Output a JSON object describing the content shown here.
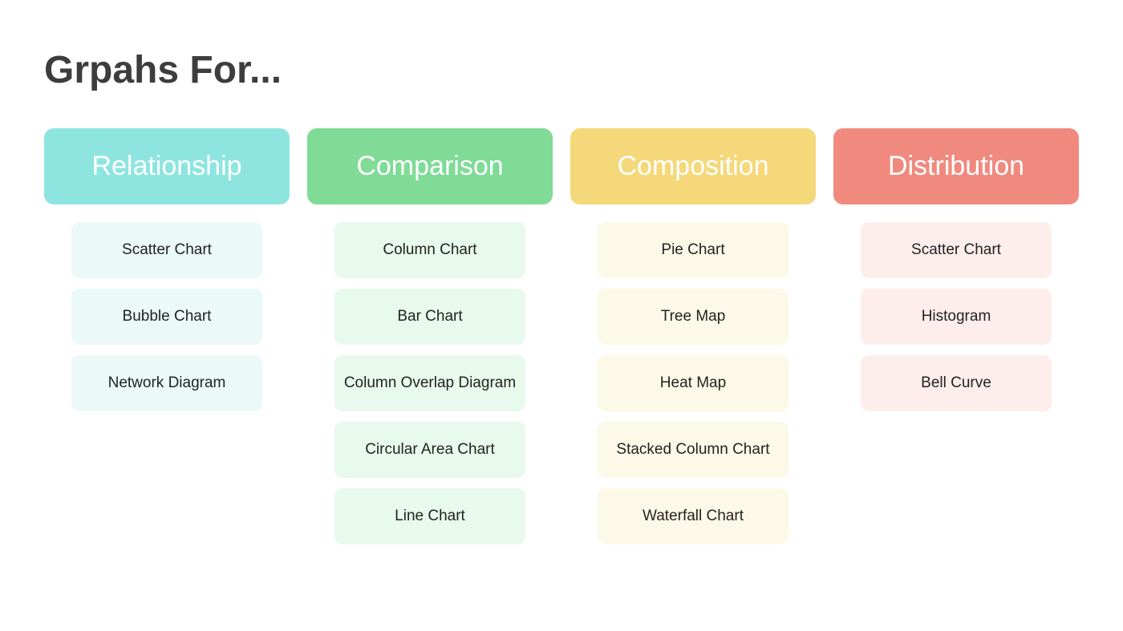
{
  "title": "Grpahs For...",
  "page": {
    "background_color": "#ffffff",
    "title_color": "#3d3d3d",
    "title_fontsize": 48,
    "title_fontweight": 700,
    "header_fontsize": 34,
    "header_fontweight": 500,
    "header_text_color": "#ffffff",
    "item_fontsize": 19,
    "item_text_color": "#222222",
    "column_gap": 22,
    "item_gap": 13,
    "header_border_radius": 12,
    "item_border_radius": 10
  },
  "categories": [
    {
      "label": "Relationship",
      "header_color": "#8ee5e0",
      "item_bg_color": "#ebf9f8",
      "items": [
        "Scatter Chart",
        "Bubble Chart",
        "Network Diagram"
      ]
    },
    {
      "label": "Comparison",
      "header_color": "#7fdb96",
      "item_bg_color": "#e8f9ed",
      "items": [
        "Column Chart",
        "Bar Chart",
        "Column Overlap Diagram",
        "Circular Area Chart",
        "Line Chart"
      ]
    },
    {
      "label": "Composition",
      "header_color": "#f4d87a",
      "item_bg_color": "#fdf9e8",
      "items": [
        "Pie Chart",
        "Tree Map",
        "Heat Map",
        "Stacked Column Chart",
        "Waterfall Chart"
      ]
    },
    {
      "label": "Distribution",
      "header_color": "#f08a7f",
      "item_bg_color": "#fdeeec",
      "items": [
        "Scatter Chart",
        "Histogram",
        "Bell Curve"
      ]
    }
  ]
}
